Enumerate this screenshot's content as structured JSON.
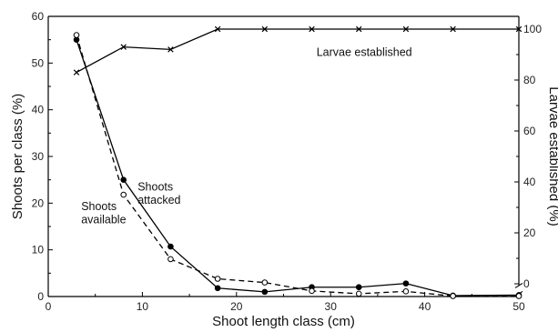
{
  "chart_data": {
    "type": "line",
    "xlabel": "Shoot length class (cm)",
    "ylabel": "Shoots per class (%)",
    "y2label": "Larvae established (%)",
    "xlim": [
      0,
      50
    ],
    "ylim": [
      0,
      60
    ],
    "y2lim": [
      -5,
      105
    ],
    "xticks": [
      0,
      10,
      20,
      30,
      40,
      50
    ],
    "yticks": [
      0,
      10,
      20,
      30,
      40,
      50,
      60
    ],
    "y2ticks": [
      0,
      20,
      40,
      60,
      80,
      100
    ],
    "y2_axis_break": true,
    "grid": false,
    "series": [
      {
        "name": "Shoots attacked",
        "axis": "left",
        "line": "solid",
        "marker": "filled-circle",
        "x": [
          3,
          8,
          13,
          18,
          23,
          28,
          33,
          38,
          43,
          50
        ],
        "y": [
          55,
          25,
          10.7,
          1.8,
          1,
          2,
          2,
          2.8,
          0.2,
          0.3
        ]
      },
      {
        "name": "Shoots available",
        "axis": "left",
        "line": "dashed",
        "marker": "open-circle",
        "x": [
          3,
          8,
          13,
          18,
          23,
          28,
          33,
          38,
          43,
          50
        ],
        "y": [
          56,
          21.8,
          8,
          3.8,
          3,
          1.2,
          0.6,
          1.1,
          0.1,
          0.1
        ]
      },
      {
        "name": "Larvae established",
        "axis": "right",
        "line": "solid",
        "marker": "cross",
        "x": [
          3,
          8,
          13,
          18,
          23,
          28,
          33,
          38,
          43,
          50
        ],
        "y": [
          83,
          93,
          92,
          100,
          100,
          100,
          100,
          100,
          100,
          100
        ]
      }
    ],
    "annotations": [
      {
        "text": "Larvae established",
        "x": 28.5,
        "y": 51.5
      },
      {
        "text": "Shoots",
        "x": 9.5,
        "y": 22.7
      },
      {
        "text": "attacked",
        "x": 9.5,
        "y": 19.9
      },
      {
        "text": "Shoots",
        "x": 3.5,
        "y": 18.5
      },
      {
        "text": "available",
        "x": 3.5,
        "y": 15.7
      }
    ]
  }
}
